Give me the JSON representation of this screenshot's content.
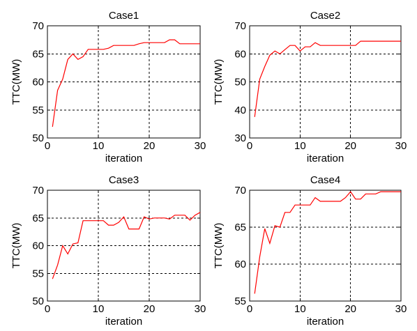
{
  "chart_data": [
    {
      "type": "line",
      "title": "Case1",
      "xlabel": "iteration",
      "ylabel": "TTC(MW)",
      "xlim": [
        0,
        30
      ],
      "ylim": [
        50,
        70
      ],
      "xticks": [
        0,
        10,
        20,
        30
      ],
      "yticks": [
        50,
        55,
        60,
        65,
        70
      ],
      "grid": true,
      "series": [
        {
          "color": "#ff0000",
          "x": [
            1,
            2,
            3,
            4,
            5,
            6,
            7,
            8,
            9,
            10,
            11,
            12,
            13,
            14,
            15,
            16,
            17,
            18,
            19,
            20,
            21,
            22,
            23,
            24,
            25,
            26,
            27,
            28,
            29,
            30
          ],
          "y": [
            52,
            58.5,
            60.5,
            64,
            65,
            64,
            64.5,
            65.8,
            65.8,
            65.8,
            65.8,
            66,
            66.5,
            66.5,
            66.5,
            66.5,
            66.5,
            66.8,
            67,
            67,
            67,
            67,
            67,
            67.5,
            67.5,
            66.8,
            66.8,
            66.8,
            66.8,
            66.8
          ]
        }
      ]
    },
    {
      "type": "line",
      "title": "Case2",
      "xlabel": "iteration",
      "ylabel": "TTC(MW)",
      "xlim": [
        0,
        30
      ],
      "ylim": [
        30,
        70
      ],
      "xticks": [
        0,
        10,
        20,
        30
      ],
      "yticks": [
        30,
        40,
        50,
        60,
        70
      ],
      "grid": true,
      "series": [
        {
          "color": "#ff0000",
          "x": [
            1,
            2,
            3,
            4,
            5,
            6,
            7,
            8,
            9,
            10,
            11,
            12,
            13,
            14,
            15,
            16,
            17,
            18,
            19,
            20,
            21,
            22,
            23,
            24,
            25,
            26,
            27,
            28,
            29,
            30
          ],
          "y": [
            37.5,
            51,
            55.5,
            59.5,
            61,
            60,
            61.5,
            63,
            63,
            61,
            62.5,
            62.5,
            64,
            63,
            63,
            63,
            63,
            63,
            63,
            63,
            63,
            64.5,
            64.5,
            64.5,
            64.5,
            64.5,
            64.5,
            64.5,
            64.5,
            64.5
          ]
        }
      ]
    },
    {
      "type": "line",
      "title": "Case3",
      "xlabel": "iteration",
      "ylabel": "TTC(MW)",
      "xlim": [
        0,
        30
      ],
      "ylim": [
        50,
        70
      ],
      "xticks": [
        0,
        10,
        20,
        30
      ],
      "yticks": [
        50,
        55,
        60,
        65,
        70
      ],
      "grid": true,
      "series": [
        {
          "color": "#ff0000",
          "x": [
            1,
            2,
            3,
            4,
            5,
            6,
            7,
            8,
            9,
            10,
            11,
            12,
            13,
            14,
            15,
            16,
            17,
            18,
            19,
            20,
            21,
            22,
            23,
            24,
            25,
            26,
            27,
            28,
            29,
            30
          ],
          "y": [
            54,
            56.5,
            60,
            58.5,
            60.3,
            60.5,
            64.5,
            64.5,
            64.5,
            64.5,
            64.5,
            63.7,
            63.7,
            64.2,
            65.2,
            63,
            63,
            63,
            65.2,
            64.8,
            65,
            65,
            65,
            64.8,
            65.5,
            65.5,
            65.5,
            64.6,
            65.5,
            66
          ]
        }
      ]
    },
    {
      "type": "line",
      "title": "Case4",
      "xlabel": "iteration",
      "ylabel": "TTC(MW)",
      "xlim": [
        0,
        30
      ],
      "ylim": [
        55,
        70
      ],
      "xticks": [
        0,
        10,
        20,
        30
      ],
      "yticks": [
        55,
        60,
        65,
        70
      ],
      "grid": true,
      "series": [
        {
          "color": "#ff0000",
          "x": [
            1,
            2,
            3,
            4,
            5,
            6,
            7,
            8,
            9,
            10,
            11,
            12,
            13,
            14,
            15,
            16,
            17,
            18,
            19,
            20,
            21,
            22,
            23,
            24,
            25,
            26,
            27,
            28,
            29,
            30
          ],
          "y": [
            56,
            61,
            64.8,
            62.8,
            65.2,
            65,
            67,
            67,
            68,
            68,
            68,
            68,
            69,
            68.5,
            68.5,
            68.5,
            68.5,
            68.5,
            69,
            69.8,
            68.8,
            68.8,
            69.5,
            69.5,
            69.5,
            69.8,
            69.8,
            69.8,
            69.8,
            69.8
          ]
        }
      ]
    }
  ]
}
